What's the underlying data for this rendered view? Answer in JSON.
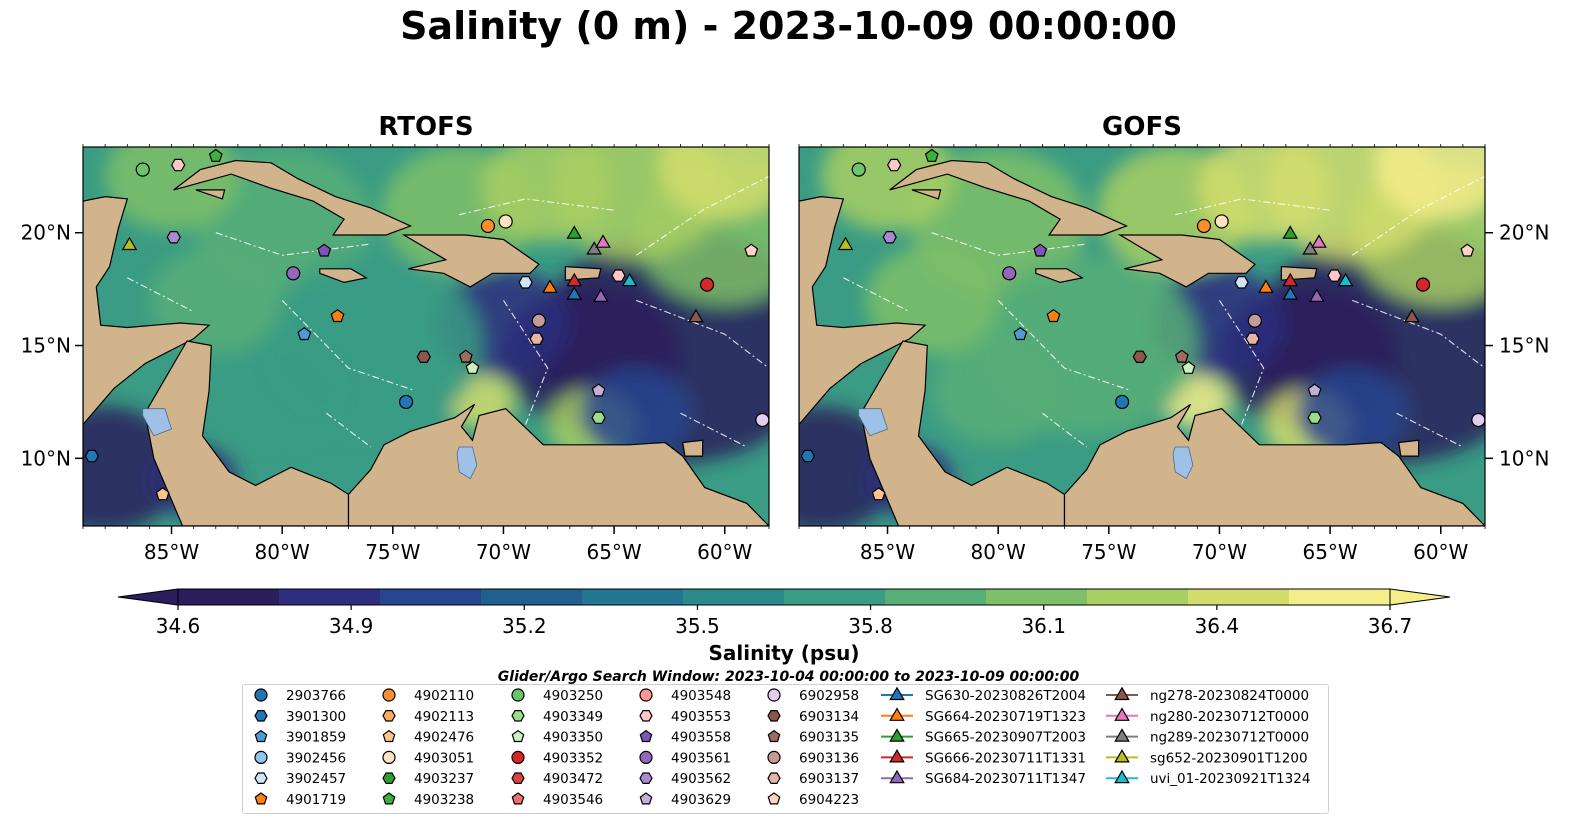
{
  "title": "Salinity (0 m) - 2023-10-09 00:00:00",
  "panels": [
    {
      "id": "rtofs",
      "title": "RTOFS"
    },
    {
      "id": "gofs",
      "title": "GOFS"
    }
  ],
  "map_extent": {
    "lon": [
      -89.0,
      -58.0
    ],
    "lat": [
      7.0,
      23.8
    ]
  },
  "x_ticks": [
    {
      "lon": -85,
      "label": "85°W"
    },
    {
      "lon": -80,
      "label": "80°W"
    },
    {
      "lon": -75,
      "label": "75°W"
    },
    {
      "lon": -70,
      "label": "70°W"
    },
    {
      "lon": -65,
      "label": "65°W"
    },
    {
      "lon": -60,
      "label": "60°W"
    }
  ],
  "y_ticks": [
    {
      "lat": 10,
      "label": "10°N"
    },
    {
      "lat": 15,
      "label": "15°N"
    },
    {
      "lat": 20,
      "label": "20°N"
    }
  ],
  "colors": {
    "land": "#d2b48c",
    "lake": "#9fc1e8",
    "coast": "#000000",
    "colormap": [
      "#2a1e5c",
      "#2d2f7e",
      "#27468f",
      "#215f8e",
      "#237690",
      "#2a8a8c",
      "#3a9c84",
      "#58ae77",
      "#7ebf69",
      "#a8cf63",
      "#d2dd6c",
      "#f5ec8a"
    ]
  },
  "colorbar": {
    "min": 34.6,
    "max": 36.7,
    "ticks": [
      "34.6",
      "34.9",
      "35.2",
      "35.5",
      "35.8",
      "36.1",
      "36.4",
      "36.7"
    ],
    "label": "Salinity (psu)",
    "extend": "both"
  },
  "legend": {
    "title": "Glider/Argo Search Window: 2023-10-04 00:00:00 to 2023-10-09 00:00:00",
    "columns": [
      [
        {
          "label": "2903766",
          "marker": "circle",
          "color": "#1f77b4"
        },
        {
          "label": "3901300",
          "marker": "hexagon",
          "color": "#1f77b4"
        },
        {
          "label": "3901859",
          "marker": "pentagon",
          "color": "#4a9bd8"
        },
        {
          "label": "3902456",
          "marker": "circle",
          "color": "#8fc4ee"
        },
        {
          "label": "3902457",
          "marker": "hexagon",
          "color": "#cfe5f7"
        },
        {
          "label": "4901719",
          "marker": "pentagon",
          "color": "#ff7f0e"
        }
      ],
      [
        {
          "label": "4902110",
          "marker": "circle",
          "color": "#ff8c2e"
        },
        {
          "label": "4902113",
          "marker": "hexagon",
          "color": "#ffac63"
        },
        {
          "label": "4902476",
          "marker": "pentagon",
          "color": "#ffc48c"
        },
        {
          "label": "4903051",
          "marker": "circle",
          "color": "#ffe2c4"
        },
        {
          "label": "4903237",
          "marker": "hexagon",
          "color": "#2ca02c"
        },
        {
          "label": "4903238",
          "marker": "pentagon",
          "color": "#3cb03c"
        }
      ],
      [
        {
          "label": "4903250",
          "marker": "circle",
          "color": "#6cc46c"
        },
        {
          "label": "4903349",
          "marker": "hexagon",
          "color": "#98df8a"
        },
        {
          "label": "4903350",
          "marker": "pentagon",
          "color": "#c8f0c0"
        },
        {
          "label": "4903352",
          "marker": "circle",
          "color": "#d62728"
        },
        {
          "label": "4903472",
          "marker": "hexagon",
          "color": "#e04040"
        },
        {
          "label": "4903546",
          "marker": "pentagon",
          "color": "#f07070"
        }
      ],
      [
        {
          "label": "4903548",
          "marker": "circle",
          "color": "#ff9896"
        },
        {
          "label": "4903553",
          "marker": "hexagon",
          "color": "#ffc8c6"
        },
        {
          "label": "4903558",
          "marker": "pentagon",
          "color": "#7d55b8"
        },
        {
          "label": "4903561",
          "marker": "circle",
          "color": "#9467bd"
        },
        {
          "label": "4903562",
          "marker": "hexagon",
          "color": "#a98ad0"
        },
        {
          "label": "4903629",
          "marker": "pentagon",
          "color": "#c5b0d5"
        }
      ],
      [
        {
          "label": "6902958",
          "marker": "circle",
          "color": "#e2cdf0"
        },
        {
          "label": "6903134",
          "marker": "hexagon",
          "color": "#8c564b"
        },
        {
          "label": "6903135",
          "marker": "pentagon",
          "color": "#a06a5e"
        },
        {
          "label": "6903136",
          "marker": "circle",
          "color": "#c49c94"
        },
        {
          "label": "6903137",
          "marker": "hexagon",
          "color": "#e6b4a6"
        },
        {
          "label": "6904223",
          "marker": "pentagon",
          "color": "#ffd2c2"
        }
      ],
      [
        {
          "label": "SG630-20230826T2004",
          "marker": "triangle",
          "color": "#1f77b4"
        },
        {
          "label": "SG664-20230719T1323",
          "marker": "triangle",
          "color": "#ff7f0e"
        },
        {
          "label": "SG665-20230907T2003",
          "marker": "triangle",
          "color": "#2ca02c"
        },
        {
          "label": "SG666-20230711T1331",
          "marker": "triangle",
          "color": "#d62728"
        },
        {
          "label": "SG684-20230711T1347",
          "marker": "triangle",
          "color": "#9467bd"
        }
      ],
      [
        {
          "label": "ng278-20230824T0000",
          "marker": "triangle",
          "color": "#8c564b"
        },
        {
          "label": "ng280-20230712T0000",
          "marker": "triangle",
          "color": "#e377c2"
        },
        {
          "label": "ng289-20230712T0000",
          "marker": "triangle",
          "color": "#7f7f7f"
        },
        {
          "label": "sg652-20230901T1200",
          "marker": "triangle",
          "color": "#bcbd22"
        },
        {
          "label": "uvi_01-20230921T1324",
          "marker": "triangle",
          "color": "#17becf"
        }
      ]
    ]
  },
  "observations": [
    {
      "lon": -86.3,
      "lat": 22.8,
      "marker": "circle",
      "color": "#6cc46c"
    },
    {
      "lon": -84.7,
      "lat": 23.0,
      "marker": "hexagon",
      "color": "#ffc8c6"
    },
    {
      "lon": -83.0,
      "lat": 23.4,
      "marker": "pentagon",
      "color": "#3cb03c"
    },
    {
      "lon": -86.9,
      "lat": 19.5,
      "marker": "triangle",
      "color": "#bcbd22"
    },
    {
      "lon": -84.9,
      "lat": 19.8,
      "marker": "hexagon",
      "color": "#a98ad0"
    },
    {
      "lon": -79.5,
      "lat": 18.2,
      "marker": "circle",
      "color": "#9467bd"
    },
    {
      "lon": -78.1,
      "lat": 19.2,
      "marker": "pentagon",
      "color": "#7d55b8"
    },
    {
      "lon": -77.5,
      "lat": 16.3,
      "marker": "pentagon",
      "color": "#ff7f0e"
    },
    {
      "lon": -79.0,
      "lat": 15.5,
      "marker": "pentagon",
      "color": "#4a9bd8"
    },
    {
      "lon": -70.7,
      "lat": 20.3,
      "marker": "circle",
      "color": "#ff8c2e"
    },
    {
      "lon": -69.9,
      "lat": 20.5,
      "marker": "circle",
      "color": "#ffe2c4"
    },
    {
      "lon": -69.0,
      "lat": 17.8,
      "marker": "hexagon",
      "color": "#cfe5f7"
    },
    {
      "lon": -67.9,
      "lat": 17.6,
      "marker": "triangle",
      "color": "#ff7f0e"
    },
    {
      "lon": -66.8,
      "lat": 17.9,
      "marker": "triangle",
      "color": "#d62728"
    },
    {
      "lon": -66.8,
      "lat": 17.3,
      "marker": "triangle",
      "color": "#1f77b4"
    },
    {
      "lon": -66.8,
      "lat": 20.0,
      "marker": "triangle",
      "color": "#2ca02c"
    },
    {
      "lon": -65.9,
      "lat": 19.3,
      "marker": "triangle",
      "color": "#7f7f7f"
    },
    {
      "lon": -65.5,
      "lat": 19.6,
      "marker": "triangle",
      "color": "#e377c2"
    },
    {
      "lon": -65.6,
      "lat": 17.2,
      "marker": "triangle",
      "color": "#9467bd"
    },
    {
      "lon": -64.8,
      "lat": 18.1,
      "marker": "hexagon",
      "color": "#ffc8c6"
    },
    {
      "lon": -64.3,
      "lat": 17.9,
      "marker": "triangle",
      "color": "#17becf"
    },
    {
      "lon": -60.8,
      "lat": 17.7,
      "marker": "circle",
      "color": "#d62728"
    },
    {
      "lon": -58.8,
      "lat": 19.2,
      "marker": "pentagon",
      "color": "#ffd2c2"
    },
    {
      "lon": -61.3,
      "lat": 16.3,
      "marker": "triangle",
      "color": "#8c564b"
    },
    {
      "lon": -68.4,
      "lat": 16.1,
      "marker": "circle",
      "color": "#c49c94"
    },
    {
      "lon": -68.5,
      "lat": 15.3,
      "marker": "hexagon",
      "color": "#e6b4a6"
    },
    {
      "lon": -73.6,
      "lat": 14.5,
      "marker": "hexagon",
      "color": "#8c564b"
    },
    {
      "lon": -71.7,
      "lat": 14.5,
      "marker": "pentagon",
      "color": "#a06a5e"
    },
    {
      "lon": -71.4,
      "lat": 14.0,
      "marker": "pentagon",
      "color": "#c8f0c0"
    },
    {
      "lon": -74.4,
      "lat": 12.5,
      "marker": "circle",
      "color": "#1f77b4"
    },
    {
      "lon": -65.7,
      "lat": 13.0,
      "marker": "pentagon",
      "color": "#c5b0d5"
    },
    {
      "lon": -65.7,
      "lat": 11.8,
      "marker": "hexagon",
      "color": "#98df8a"
    },
    {
      "lon": -58.3,
      "lat": 11.7,
      "marker": "circle",
      "color": "#e2cdf0"
    },
    {
      "lon": -88.6,
      "lat": 10.1,
      "marker": "hexagon",
      "color": "#1f77b4"
    },
    {
      "lon": -85.4,
      "lat": 8.4,
      "marker": "pentagon",
      "color": "#ffc48c"
    }
  ]
}
